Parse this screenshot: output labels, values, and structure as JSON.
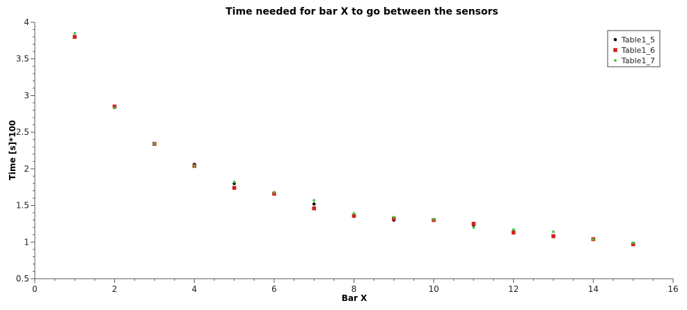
{
  "chart_data": {
    "type": "scatter",
    "title": "Time needed for bar X to go between the sensors",
    "xlabel": "Bar X",
    "ylabel": "Time [s]*100",
    "xlim": [
      0,
      16
    ],
    "ylim": [
      0.5,
      4
    ],
    "xticks": [
      0,
      2,
      4,
      6,
      8,
      10,
      12,
      14,
      16
    ],
    "yticks": [
      0.5,
      1,
      1.5,
      2,
      2.5,
      3,
      3.5,
      4
    ],
    "grid": false,
    "legend_placement": "top-right",
    "x": [
      1,
      2,
      3,
      4,
      5,
      6,
      7,
      8,
      9,
      10,
      11,
      12,
      13,
      14,
      15
    ],
    "series": [
      {
        "name": "Table1_5",
        "color": "#000000",
        "marker": "circle",
        "values": [
          3.8,
          2.84,
          2.34,
          2.06,
          1.8,
          1.67,
          1.52,
          1.35,
          1.3,
          1.3,
          1.23,
          1.15,
          1.08,
          1.04,
          0.97
        ]
      },
      {
        "name": "Table1_6",
        "color": "#d42020",
        "marker": "square",
        "values": [
          3.8,
          2.85,
          2.34,
          2.04,
          1.74,
          1.66,
          1.46,
          1.36,
          1.32,
          1.3,
          1.25,
          1.13,
          1.08,
          1.04,
          0.97
        ]
      },
      {
        "name": "Table1_7",
        "color": "#3cc83c",
        "marker": "diamond",
        "values": [
          3.85,
          2.83,
          2.34,
          2.04,
          1.82,
          1.68,
          1.57,
          1.39,
          1.34,
          1.31,
          1.2,
          1.17,
          1.14,
          1.04,
          0.99
        ]
      }
    ]
  }
}
